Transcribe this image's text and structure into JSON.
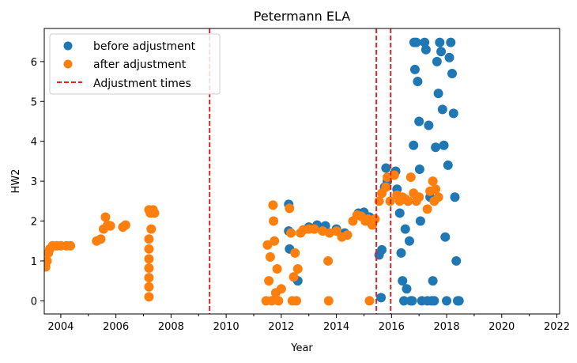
{
  "chart_data": {
    "type": "scatter",
    "title": "Petermann ELA",
    "xlabel": "Year",
    "ylabel": "HW2",
    "xlim": [
      2003.4,
      2022.1
    ],
    "ylim": [
      -0.33,
      6.83
    ],
    "x_ticks": [
      2004,
      2006,
      2008,
      2010,
      2012,
      2014,
      2016,
      2018,
      2020,
      2022
    ],
    "x_tick_labels": [
      "2004",
      "2006",
      "2008",
      "2010",
      "2012",
      "2014",
      "2016",
      "2018",
      "2020",
      "2022"
    ],
    "y_ticks": [
      0,
      1,
      2,
      3,
      4,
      5,
      6
    ],
    "y_tick_labels": [
      "0",
      "1",
      "2",
      "3",
      "4",
      "5",
      "6"
    ],
    "grid": false,
    "legend_position": "upper-left",
    "legend": [
      {
        "label": "before adjustment",
        "kind": "marker",
        "color": "#1f77b4"
      },
      {
        "label": "after adjustment",
        "kind": "marker",
        "color": "#ff7f0e"
      },
      {
        "label": "Adjustment times",
        "kind": "dashed-line",
        "color": "#d62728"
      }
    ],
    "adjustment_times": [
      2009.4,
      2015.45,
      2015.97
    ],
    "series": [
      {
        "name": "before adjustment",
        "color": "#1f77b4",
        "points": [
          [
            2012.27,
            2.42
          ],
          [
            2012.27,
            1.75
          ],
          [
            2012.3,
            1.3
          ],
          [
            2012.6,
            0.5
          ],
          [
            2013.0,
            1.85
          ],
          [
            2013.3,
            1.9
          ],
          [
            2013.6,
            1.88
          ],
          [
            2014.0,
            1.8
          ],
          [
            2014.3,
            1.7
          ],
          [
            2014.8,
            2.2
          ],
          [
            2015.0,
            2.22
          ],
          [
            2015.2,
            2.1
          ],
          [
            2015.55,
            1.15
          ],
          [
            2015.65,
            1.28
          ],
          [
            2015.62,
            0.08
          ],
          [
            2015.75,
            2.85
          ],
          [
            2015.8,
            3.33
          ],
          [
            2015.85,
            3.0
          ],
          [
            2016.15,
            3.25
          ],
          [
            2016.2,
            2.8
          ],
          [
            2016.3,
            2.2
          ],
          [
            2016.35,
            1.2
          ],
          [
            2016.4,
            0.5
          ],
          [
            2016.45,
            0.0
          ],
          [
            2016.5,
            1.8
          ],
          [
            2016.55,
            0.3
          ],
          [
            2016.6,
            2.5
          ],
          [
            2016.65,
            1.5
          ],
          [
            2016.7,
            0.0
          ],
          [
            2016.75,
            0.0
          ],
          [
            2016.8,
            3.9
          ],
          [
            2016.82,
            6.48
          ],
          [
            2016.85,
            5.8
          ],
          [
            2016.9,
            6.48
          ],
          [
            2016.95,
            5.5
          ],
          [
            2017.0,
            4.5
          ],
          [
            2017.02,
            3.3
          ],
          [
            2017.05,
            2.0
          ],
          [
            2017.1,
            0.0
          ],
          [
            2017.2,
            6.48
          ],
          [
            2017.25,
            6.3
          ],
          [
            2017.3,
            0.0
          ],
          [
            2017.35,
            4.4
          ],
          [
            2017.4,
            2.6
          ],
          [
            2017.45,
            0.0
          ],
          [
            2017.5,
            0.5
          ],
          [
            2017.55,
            0.0
          ],
          [
            2017.6,
            3.85
          ],
          [
            2017.65,
            6.0
          ],
          [
            2017.7,
            5.2
          ],
          [
            2017.75,
            6.48
          ],
          [
            2017.8,
            6.25
          ],
          [
            2017.85,
            4.8
          ],
          [
            2017.9,
            3.9
          ],
          [
            2017.95,
            1.6
          ],
          [
            2018.0,
            0.0
          ],
          [
            2018.05,
            3.4
          ],
          [
            2018.1,
            6.1
          ],
          [
            2018.15,
            6.48
          ],
          [
            2018.2,
            5.7
          ],
          [
            2018.25,
            4.7
          ],
          [
            2018.3,
            2.6
          ],
          [
            2018.35,
            1.0
          ],
          [
            2018.4,
            0.0
          ],
          [
            2018.45,
            0.0
          ]
        ]
      },
      {
        "name": "after adjustment",
        "color": "#ff7f0e",
        "points": [
          [
            2003.45,
            0.85
          ],
          [
            2003.5,
            1.0
          ],
          [
            2003.55,
            1.2
          ],
          [
            2003.6,
            1.3
          ],
          [
            2003.7,
            1.38
          ],
          [
            2003.85,
            1.38
          ],
          [
            2004.0,
            1.38
          ],
          [
            2004.2,
            1.38
          ],
          [
            2004.35,
            1.38
          ],
          [
            2005.3,
            1.5
          ],
          [
            2005.45,
            1.55
          ],
          [
            2005.55,
            1.8
          ],
          [
            2005.62,
            2.1
          ],
          [
            2005.7,
            1.9
          ],
          [
            2005.8,
            1.88
          ],
          [
            2006.25,
            1.85
          ],
          [
            2006.35,
            1.9
          ],
          [
            2007.2,
            2.28
          ],
          [
            2007.25,
            2.2
          ],
          [
            2007.28,
            1.8
          ],
          [
            2007.2,
            1.55
          ],
          [
            2007.2,
            1.3
          ],
          [
            2007.2,
            1.05
          ],
          [
            2007.2,
            0.82
          ],
          [
            2007.2,
            0.58
          ],
          [
            2007.2,
            0.35
          ],
          [
            2007.2,
            0.1
          ],
          [
            2007.35,
            2.28
          ],
          [
            2007.4,
            2.2
          ],
          [
            2011.45,
            0.0
          ],
          [
            2011.5,
            1.4
          ],
          [
            2011.55,
            0.5
          ],
          [
            2011.6,
            1.1
          ],
          [
            2011.65,
            0.0
          ],
          [
            2011.7,
            2.4
          ],
          [
            2011.72,
            2.0
          ],
          [
            2011.75,
            1.5
          ],
          [
            2011.8,
            0.2
          ],
          [
            2011.85,
            0.8
          ],
          [
            2011.9,
            0.0
          ],
          [
            2012.0,
            0.3
          ],
          [
            2012.3,
            2.32
          ],
          [
            2012.35,
            1.7
          ],
          [
            2012.4,
            0.0
          ],
          [
            2012.45,
            0.6
          ],
          [
            2012.5,
            1.2
          ],
          [
            2012.55,
            0.0
          ],
          [
            2012.6,
            0.8
          ],
          [
            2012.7,
            1.7
          ],
          [
            2012.8,
            1.78
          ],
          [
            2013.0,
            1.8
          ],
          [
            2013.2,
            1.8
          ],
          [
            2013.5,
            1.75
          ],
          [
            2013.7,
            1.0
          ],
          [
            2013.72,
            0.0
          ],
          [
            2013.75,
            1.7
          ],
          [
            2014.0,
            1.75
          ],
          [
            2014.2,
            1.6
          ],
          [
            2014.4,
            1.65
          ],
          [
            2014.6,
            2.0
          ],
          [
            2014.75,
            2.15
          ],
          [
            2014.9,
            2.12
          ],
          [
            2015.05,
            2.0
          ],
          [
            2015.15,
            2.05
          ],
          [
            2015.2,
            0.0
          ],
          [
            2015.3,
            1.9
          ],
          [
            2015.4,
            2.05
          ],
          [
            2015.55,
            2.5
          ],
          [
            2015.65,
            2.7
          ],
          [
            2015.8,
            2.85
          ],
          [
            2015.85,
            3.1
          ],
          [
            2015.95,
            2.5
          ],
          [
            2016.1,
            3.15
          ],
          [
            2016.2,
            2.65
          ],
          [
            2016.3,
            2.5
          ],
          [
            2016.4,
            2.6
          ],
          [
            2016.5,
            2.55
          ],
          [
            2016.6,
            2.5
          ],
          [
            2016.7,
            3.1
          ],
          [
            2016.8,
            2.7
          ],
          [
            2016.9,
            2.5
          ],
          [
            2017.0,
            2.6
          ],
          [
            2017.3,
            2.3
          ],
          [
            2017.4,
            2.75
          ],
          [
            2017.5,
            3.0
          ],
          [
            2017.55,
            2.5
          ],
          [
            2017.6,
            2.8
          ],
          [
            2017.7,
            2.6
          ]
        ]
      }
    ]
  }
}
